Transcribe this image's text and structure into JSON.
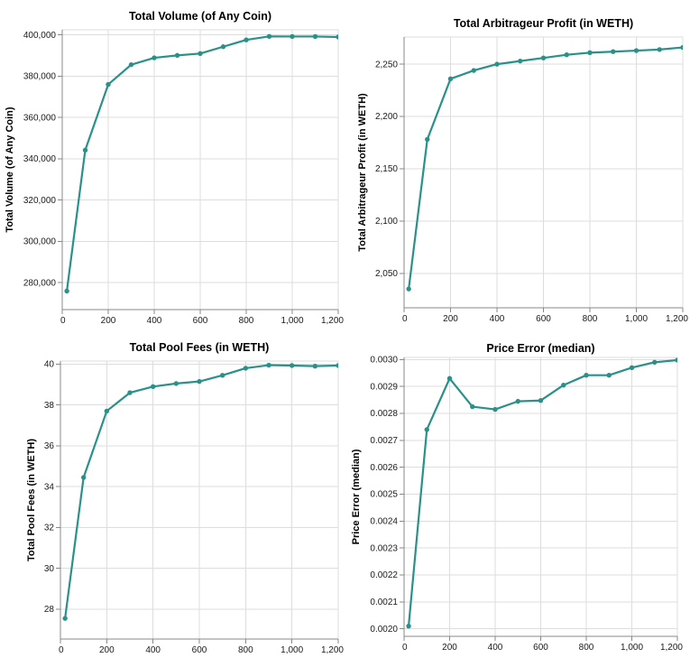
{
  "style": {
    "series_color": "#2a918a",
    "grid_color": "#dddddd",
    "axis_color": "#888888",
    "label_color": "#1a1a1a",
    "background": "#ffffff"
  },
  "chart_data": [
    {
      "id": "total-volume",
      "type": "line",
      "title": "Total Volume (of Any Coin)",
      "xlabel": "",
      "ylabel": "Total Volume (of Any Coin)",
      "grid": true,
      "legend": "none",
      "xlim": [
        0,
        1200
      ],
      "ylim": [
        266900,
        402500
      ],
      "x": [
        20,
        100,
        200,
        300,
        400,
        500,
        600,
        700,
        800,
        900,
        1000,
        1100,
        1200
      ],
      "y": [
        275900,
        344200,
        376000,
        385600,
        388900,
        390100,
        391000,
        394300,
        397600,
        399300,
        399250,
        399250,
        399000
      ],
      "x_ticks": [
        0,
        200,
        400,
        600,
        800,
        1000,
        1200
      ],
      "x_tick_labels": [
        "0",
        "200",
        "400",
        "600",
        "800",
        "1,000",
        "1,200"
      ],
      "y_ticks": [
        280000,
        300000,
        320000,
        340000,
        360000,
        380000,
        400000
      ],
      "y_tick_labels": [
        "280,000",
        "300,000",
        "320,000",
        "340,000",
        "360,000",
        "380,000",
        "400,000"
      ]
    },
    {
      "id": "arbitrageur-profit",
      "type": "line",
      "title": "Total Arbitrageur Profit (in WETH)",
      "xlabel": "",
      "ylabel": "Total Arbitrageur Profit (in WETH)",
      "grid": true,
      "legend": "none",
      "xlim": [
        0,
        1200
      ],
      "ylim": [
        2017,
        2276
      ],
      "x": [
        20,
        100,
        200,
        300,
        400,
        500,
        600,
        700,
        800,
        900,
        1000,
        1100,
        1200
      ],
      "y": [
        2035,
        2178,
        2236,
        2244,
        2250,
        2253,
        2256,
        2259,
        2261,
        2262,
        2263,
        2264,
        2266
      ],
      "x_ticks": [
        0,
        200,
        400,
        600,
        800,
        1000,
        1200
      ],
      "x_tick_labels": [
        "0",
        "200",
        "400",
        "600",
        "800",
        "1,000",
        "1,200"
      ],
      "y_ticks": [
        2050,
        2100,
        2150,
        2200,
        2250
      ],
      "y_tick_labels": [
        "2,050",
        "2,100",
        "2,150",
        "2,200",
        "2,250"
      ]
    },
    {
      "id": "pool-fees",
      "type": "line",
      "title": "Total Pool Fees (in WETH)",
      "xlabel": "",
      "ylabel": "Total Pool Fees (in WETH)",
      "grid": true,
      "legend": "none",
      "xlim": [
        0,
        1200
      ],
      "ylim": [
        26.54,
        40.15
      ],
      "x": [
        20,
        100,
        200,
        300,
        400,
        500,
        600,
        700,
        800,
        900,
        1000,
        1100,
        1200
      ],
      "y": [
        27.55,
        34.45,
        37.7,
        38.6,
        38.9,
        39.05,
        39.15,
        39.45,
        39.8,
        39.95,
        39.93,
        39.9,
        39.93
      ],
      "x_ticks": [
        0,
        200,
        400,
        600,
        800,
        1000,
        1200
      ],
      "x_tick_labels": [
        "0",
        "200",
        "400",
        "600",
        "800",
        "1,000",
        "1,200"
      ],
      "y_ticks": [
        28,
        30,
        32,
        34,
        36,
        38,
        40
      ],
      "y_tick_labels": [
        "28",
        "30",
        "32",
        "34",
        "36",
        "38",
        "40"
      ]
    },
    {
      "id": "price-error",
      "type": "line",
      "title": "Price Error (median)",
      "xlabel": "",
      "ylabel": "Price Error (median)",
      "grid": true,
      "legend": "none",
      "xlim": [
        0,
        1200
      ],
      "ylim": [
        0.001972,
        0.003008
      ],
      "x": [
        20,
        100,
        200,
        300,
        400,
        500,
        600,
        700,
        800,
        900,
        1000,
        1100,
        1200
      ],
      "y": [
        0.00201,
        0.00274,
        0.00293,
        0.002825,
        0.002815,
        0.002845,
        0.002848,
        0.002905,
        0.002942,
        0.002942,
        0.00297,
        0.00299,
        0.002998
      ],
      "x_ticks": [
        0,
        200,
        400,
        600,
        800,
        1000,
        1200
      ],
      "x_tick_labels": [
        "0",
        "200",
        "400",
        "600",
        "800",
        "1,000",
        "1,200"
      ],
      "y_ticks": [
        0.002,
        0.0021,
        0.0022,
        0.0023,
        0.0024,
        0.0025,
        0.0026,
        0.0027,
        0.0028,
        0.0029,
        0.003
      ],
      "y_tick_labels": [
        "0.0020",
        "0.0021",
        "0.0022",
        "0.0023",
        "0.0024",
        "0.0025",
        "0.0026",
        "0.0027",
        "0.0028",
        "0.0029",
        "0.0030"
      ]
    }
  ]
}
